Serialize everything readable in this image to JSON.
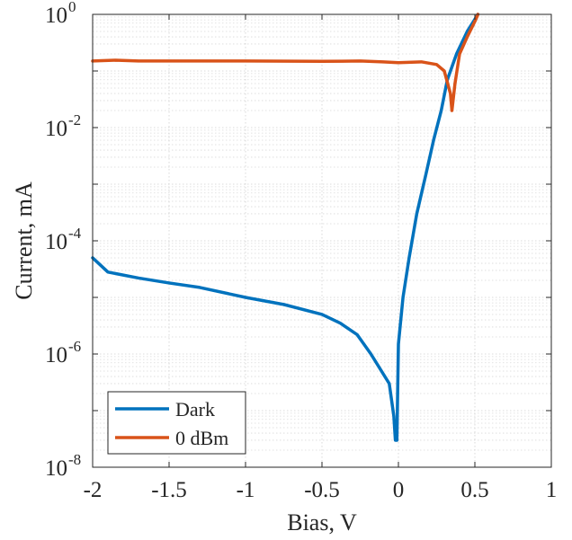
{
  "chart_data": {
    "type": "line",
    "xlabel": "Bias, V",
    "ylabel": "Current, mA",
    "xlim": [
      -2,
      1
    ],
    "ylim": [
      1e-08,
      1
    ],
    "yscale": "log",
    "grid": true,
    "minor_grid": true,
    "legend_position": "bottom-left",
    "x_ticks": [
      {
        "value": -2,
        "label": "-2"
      },
      {
        "value": -1.5,
        "label": "-1.5"
      },
      {
        "value": -1,
        "label": "-1"
      },
      {
        "value": -0.5,
        "label": "-0.5"
      },
      {
        "value": 0,
        "label": "0"
      },
      {
        "value": 0.5,
        "label": "0.5"
      },
      {
        "value": 1,
        "label": "1"
      }
    ],
    "y_ticks": [
      {
        "value": 1e-08,
        "base": "10",
        "exp": "-8"
      },
      {
        "value": 1e-06,
        "base": "10",
        "exp": "-6"
      },
      {
        "value": 0.0001,
        "base": "10",
        "exp": "-4"
      },
      {
        "value": 0.01,
        "base": "10",
        "exp": "-2"
      },
      {
        "value": 1,
        "base": "10",
        "exp": "0"
      }
    ],
    "series": [
      {
        "name": "Dark",
        "color": "#0072BD",
        "points": [
          [
            -2.0,
            5e-05
          ],
          [
            -1.9,
            2.8e-05
          ],
          [
            -1.7,
            2.2e-05
          ],
          [
            -1.5,
            1.8e-05
          ],
          [
            -1.3,
            1.5e-05
          ],
          [
            -1.0,
            1e-05
          ],
          [
            -0.75,
            7.5e-06
          ],
          [
            -0.5,
            5e-06
          ],
          [
            -0.38,
            3.5e-06
          ],
          [
            -0.27,
            2.2e-06
          ],
          [
            -0.18,
            1e-06
          ],
          [
            -0.06,
            3e-07
          ],
          [
            -0.03,
            8e-08
          ],
          [
            -0.02,
            3e-08
          ],
          [
            -0.01,
            3e-08
          ],
          [
            0.0,
            1.5e-06
          ],
          [
            0.03,
            1e-05
          ],
          [
            0.07,
            5e-05
          ],
          [
            0.12,
            0.0003
          ],
          [
            0.18,
            0.0015
          ],
          [
            0.23,
            0.006
          ],
          [
            0.28,
            0.02
          ],
          [
            0.32,
            0.07
          ],
          [
            0.38,
            0.2
          ],
          [
            0.45,
            0.5
          ],
          [
            0.52,
            1.0
          ]
        ]
      },
      {
        "name": "0 dBm",
        "color": "#D95319",
        "points": [
          [
            -2.0,
            0.15
          ],
          [
            -1.85,
            0.155
          ],
          [
            -1.7,
            0.15
          ],
          [
            -1.5,
            0.15
          ],
          [
            -1.0,
            0.15
          ],
          [
            -0.5,
            0.148
          ],
          [
            -0.25,
            0.15
          ],
          [
            -0.1,
            0.145
          ],
          [
            0.0,
            0.14
          ],
          [
            0.15,
            0.145
          ],
          [
            0.25,
            0.13
          ],
          [
            0.3,
            0.1
          ],
          [
            0.34,
            0.04
          ],
          [
            0.35,
            0.02
          ],
          [
            0.37,
            0.06
          ],
          [
            0.4,
            0.2
          ],
          [
            0.45,
            0.4
          ],
          [
            0.5,
            0.75
          ],
          [
            0.52,
            1.0
          ]
        ]
      }
    ]
  }
}
